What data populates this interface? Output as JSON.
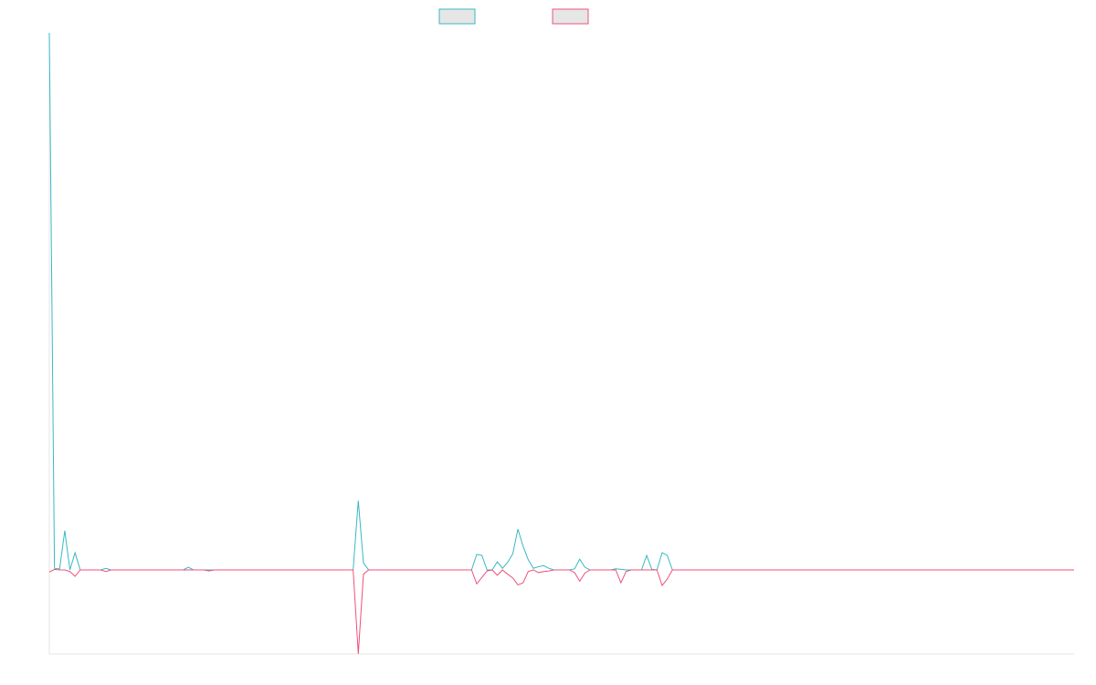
{
  "chart_data": {
    "type": "line",
    "ylim": [
      -15.65,
      100
    ],
    "series": [
      {
        "color": "#36b9c4",
        "values": [
          100,
          0.3,
          0.2,
          7.3,
          0,
          3.2,
          0,
          0,
          0,
          0,
          0,
          0.3,
          0,
          0,
          0,
          0,
          0,
          0,
          0,
          0,
          0,
          0,
          0,
          0,
          0,
          0,
          0,
          0.5,
          0,
          0,
          0,
          0,
          0,
          0,
          0,
          0,
          0,
          0,
          0,
          0,
          0,
          0,
          0,
          0,
          0,
          0,
          0,
          0,
          0,
          0,
          0,
          0,
          0,
          0,
          0,
          0,
          0,
          0,
          0,
          0,
          12.9,
          1.3,
          0,
          0,
          0,
          0,
          0,
          0,
          0,
          0,
          0,
          0,
          0,
          0,
          0,
          0,
          0,
          0,
          0,
          0,
          0,
          0,
          0,
          2.9,
          2.7,
          0,
          0,
          1.5,
          0.3,
          1.4,
          3,
          7.6,
          4.4,
          1.9,
          0.3,
          0.6,
          0.8,
          0.3,
          0,
          0,
          0,
          0,
          0.2,
          2,
          0.5,
          0,
          0,
          0,
          0,
          0,
          0.2,
          0.1,
          0,
          0,
          0,
          0,
          2.7,
          0.1,
          0,
          3.2,
          2.7,
          0,
          0,
          0,
          0,
          0,
          0,
          0,
          0,
          0,
          0,
          0,
          0,
          0,
          0,
          0,
          0,
          0,
          0,
          0,
          0,
          0,
          0,
          0,
          0,
          0,
          0,
          0,
          0,
          0,
          0,
          0,
          0,
          0,
          0,
          0,
          0,
          0,
          0,
          0,
          0,
          0,
          0,
          0,
          0,
          0,
          0,
          0,
          0,
          0,
          0,
          0,
          0,
          0,
          0,
          0,
          0,
          0,
          0,
          0,
          0,
          0,
          0,
          0,
          0,
          0,
          0,
          0,
          0,
          0,
          0,
          0,
          0,
          0,
          0,
          0,
          0,
          0,
          0,
          0
        ]
      },
      {
        "color": "#f0507a",
        "values": [
          -0.4,
          0.1,
          0,
          0,
          -0.3,
          -1.2,
          0,
          0,
          0,
          0,
          0,
          -0.3,
          0,
          0,
          0,
          0,
          0,
          0,
          0,
          0,
          0,
          0,
          0,
          0,
          0,
          0,
          0,
          0,
          0,
          0,
          0,
          -0.2,
          0,
          0,
          0,
          0,
          0,
          0,
          0,
          0,
          0,
          0,
          0,
          0,
          0,
          0,
          0,
          0,
          0,
          0,
          0,
          0,
          0,
          0,
          0,
          0,
          0,
          0,
          0,
          0,
          -15.65,
          -0.8,
          0,
          0,
          0,
          0,
          0,
          0,
          0,
          0,
          0,
          0,
          0,
          0,
          0,
          0,
          0,
          0,
          0,
          0,
          0,
          0,
          0,
          -2.6,
          -1.4,
          -0.2,
          0,
          -1,
          0,
          -0.8,
          -1.5,
          -2.8,
          -2.4,
          -0.3,
          0,
          -0.5,
          -0.3,
          -0.2,
          0,
          0,
          0,
          0,
          -0.5,
          -2.1,
          -0.6,
          0,
          0,
          0,
          0,
          0,
          0,
          -2.4,
          -0.3,
          0,
          0,
          0,
          0,
          0,
          0,
          -2.9,
          -1.7,
          0,
          0,
          0,
          0,
          0,
          0,
          0,
          0,
          0,
          0,
          0,
          0,
          0,
          0,
          0,
          0,
          0,
          0,
          0,
          0,
          0,
          0,
          0,
          0,
          0,
          0,
          0,
          0,
          0,
          0,
          0,
          0,
          0,
          0,
          0,
          0,
          0,
          0,
          0,
          0,
          0,
          0,
          0,
          0,
          0,
          0,
          0,
          0,
          0,
          0,
          0,
          0,
          0,
          0,
          0,
          0,
          0,
          0,
          0,
          0,
          0,
          0,
          0,
          0,
          0,
          0,
          0,
          0,
          0,
          0,
          0,
          0,
          0,
          0,
          0,
          0,
          0,
          0,
          0
        ]
      }
    ]
  }
}
